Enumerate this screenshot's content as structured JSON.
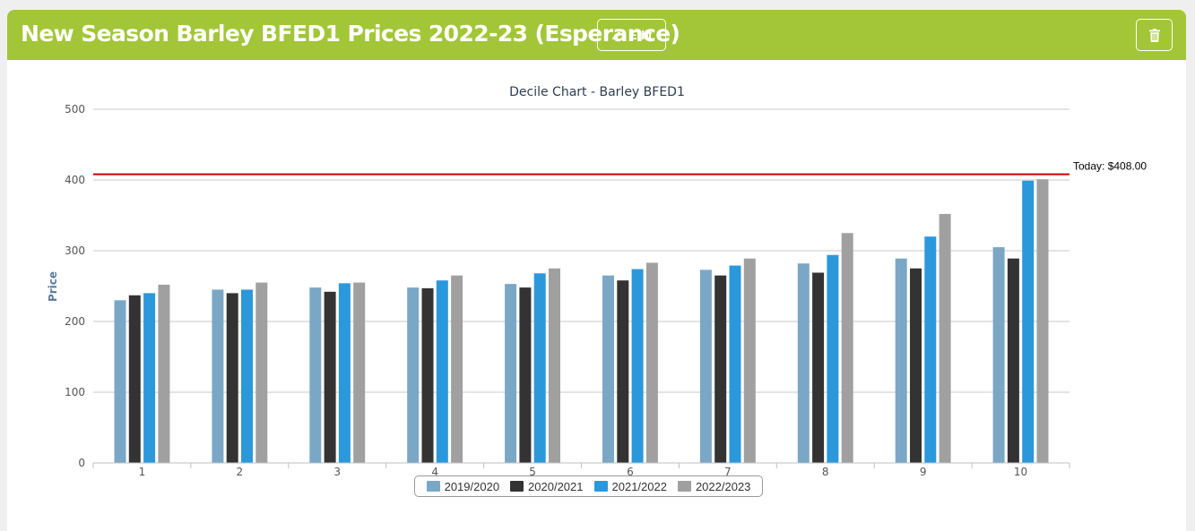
{
  "header": {
    "title": "New Season Barley BFED1 Prices 2022-23 (Esperance)",
    "edit_label": "Edit",
    "edit_icon": "pencil-icon",
    "delete_icon": "trash-icon",
    "background_color": "#a2c637"
  },
  "chart_data": {
    "type": "bar",
    "title": "Decile Chart - Barley BFED1",
    "xlabel": "",
    "ylabel": "Price",
    "ylim": [
      0,
      500
    ],
    "yticks": [
      0,
      100,
      200,
      300,
      400,
      500
    ],
    "categories": [
      "1",
      "2",
      "3",
      "4",
      "5",
      "6",
      "7",
      "8",
      "9",
      "10"
    ],
    "series": [
      {
        "name": "2019/2020",
        "color": "#7ba7c7",
        "values": [
          230,
          245,
          248,
          248,
          253,
          265,
          273,
          282,
          289,
          305
        ]
      },
      {
        "name": "2020/2021",
        "color": "#333333",
        "values": [
          237,
          240,
          242,
          247,
          248,
          258,
          265,
          269,
          275,
          289
        ]
      },
      {
        "name": "2021/2022",
        "color": "#2b98dc",
        "values": [
          240,
          245,
          254,
          258,
          268,
          274,
          279,
          294,
          320,
          399
        ]
      },
      {
        "name": "2022/2023",
        "color": "#a0a0a0",
        "values": [
          252,
          255,
          255,
          265,
          275,
          283,
          289,
          325,
          352,
          401
        ]
      }
    ],
    "reference_line": {
      "value": 408,
      "label": "Today: $408.00",
      "color": "#cc0000"
    },
    "grid": true,
    "legend_position": "bottom-center"
  }
}
